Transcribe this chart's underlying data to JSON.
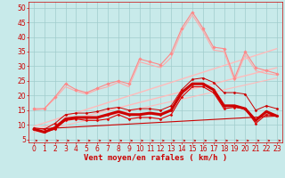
{
  "background_color": "#c8eaea",
  "grid_color": "#a0cccc",
  "xlabel": "Vent moyen/en rafales ( km/h )",
  "xlim": [
    -0.5,
    23.5
  ],
  "ylim": [
    4,
    52
  ],
  "yticks": [
    5,
    10,
    15,
    20,
    25,
    30,
    35,
    40,
    45,
    50
  ],
  "xticks": [
    0,
    1,
    2,
    3,
    4,
    5,
    6,
    7,
    8,
    9,
    10,
    11,
    12,
    13,
    14,
    15,
    16,
    17,
    18,
    19,
    20,
    21,
    22,
    23
  ],
  "line_pink_marker1": {
    "x": [
      0,
      1,
      2,
      3,
      4,
      5,
      6,
      7,
      8,
      9,
      10,
      11,
      12,
      13,
      14,
      15,
      16,
      17,
      18,
      19,
      20,
      21,
      22,
      23
    ],
    "y": [
      15.5,
      15.5,
      19.5,
      24.0,
      22.0,
      21.0,
      22.5,
      24.0,
      25.0,
      24.0,
      32.5,
      31.5,
      30.5,
      34.5,
      43.0,
      48.5,
      43.0,
      36.5,
      36.0,
      26.0,
      35.0,
      29.5,
      28.5,
      27.5
    ],
    "color": "#ff8888",
    "lw": 0.8,
    "marker": "D",
    "ms": 1.8,
    "zorder": 3
  },
  "line_pink_plain": {
    "x": [
      0,
      1,
      2,
      3,
      4,
      5,
      6,
      7,
      8,
      9,
      10,
      11,
      12,
      13,
      14,
      15,
      16,
      17,
      18,
      19,
      20,
      21,
      22,
      23
    ],
    "y": [
      15.0,
      15.5,
      19.0,
      23.0,
      21.5,
      20.5,
      22.0,
      23.0,
      24.5,
      23.0,
      31.5,
      30.5,
      29.5,
      33.0,
      42.0,
      47.5,
      42.0,
      35.5,
      35.0,
      25.0,
      34.0,
      28.5,
      27.5,
      27.0
    ],
    "color": "#ffaaaa",
    "lw": 0.8,
    "marker": null,
    "ms": 0,
    "zorder": 2
  },
  "line_trend_upper": {
    "x": [
      0,
      23
    ],
    "y": [
      9.5,
      36.0
    ],
    "color": "#ffbbbb",
    "lw": 1.0,
    "marker": null,
    "ms": 0,
    "zorder": 2
  },
  "line_trend_mid": {
    "x": [
      0,
      23
    ],
    "y": [
      8.5,
      29.5
    ],
    "color": "#ffbbbb",
    "lw": 1.0,
    "marker": null,
    "ms": 0,
    "zorder": 2
  },
  "line_trend_lower": {
    "x": [
      0,
      23
    ],
    "y": [
      7.5,
      26.0
    ],
    "color": "#ffbbbb",
    "lw": 0.8,
    "marker": null,
    "ms": 0,
    "zorder": 2
  },
  "line_red_marker1": {
    "x": [
      0,
      1,
      2,
      3,
      4,
      5,
      6,
      7,
      8,
      9,
      10,
      11,
      12,
      13,
      14,
      15,
      16,
      17,
      18,
      19,
      20,
      21,
      22,
      23
    ],
    "y": [
      8.5,
      7.5,
      8.5,
      11.5,
      12.0,
      11.5,
      11.5,
      12.0,
      13.5,
      12.0,
      12.5,
      12.5,
      12.0,
      13.5,
      19.5,
      23.0,
      23.0,
      21.0,
      15.5,
      16.0,
      15.5,
      10.5,
      13.5,
      13.0
    ],
    "color": "#dd0000",
    "lw": 0.8,
    "marker": "D",
    "ms": 1.5,
    "zorder": 4
  },
  "line_red_thick": {
    "x": [
      0,
      1,
      2,
      3,
      4,
      5,
      6,
      7,
      8,
      9,
      10,
      11,
      12,
      13,
      14,
      15,
      16,
      17,
      18,
      19,
      20,
      21,
      22,
      23
    ],
    "y": [
      8.5,
      7.5,
      9.0,
      12.0,
      12.5,
      12.5,
      12.5,
      13.5,
      14.5,
      13.5,
      13.5,
      14.0,
      13.5,
      15.0,
      21.0,
      24.0,
      24.0,
      22.0,
      16.5,
      16.5,
      15.5,
      11.5,
      14.5,
      13.0
    ],
    "color": "#cc0000",
    "lw": 2.2,
    "marker": "D",
    "ms": 1.5,
    "zorder": 5
  },
  "line_red_thin": {
    "x": [
      0,
      1,
      2,
      3,
      4,
      5,
      6,
      7,
      8,
      9,
      10,
      11,
      12,
      13,
      14,
      15,
      16,
      17,
      18,
      19,
      20,
      21,
      22,
      23
    ],
    "y": [
      9.0,
      8.5,
      10.5,
      13.5,
      14.0,
      14.0,
      14.5,
      15.5,
      16.0,
      15.0,
      15.5,
      15.5,
      15.0,
      16.5,
      22.0,
      25.5,
      26.0,
      24.5,
      21.0,
      21.0,
      20.5,
      15.0,
      16.5,
      15.5
    ],
    "color": "#cc0000",
    "lw": 0.7,
    "marker": "D",
    "ms": 1.5,
    "zorder": 4
  },
  "line_red_flat": {
    "x": [
      0,
      23
    ],
    "y": [
      8.5,
      13.0
    ],
    "color": "#cc0000",
    "lw": 0.8,
    "marker": null,
    "ms": 0,
    "zorder": 3
  },
  "xlabel_color": "#cc0000",
  "tick_color": "#cc0000",
  "tick_fontsize": 5.5,
  "xlabel_fontsize": 6.5,
  "arrow_color": "#cc0000"
}
